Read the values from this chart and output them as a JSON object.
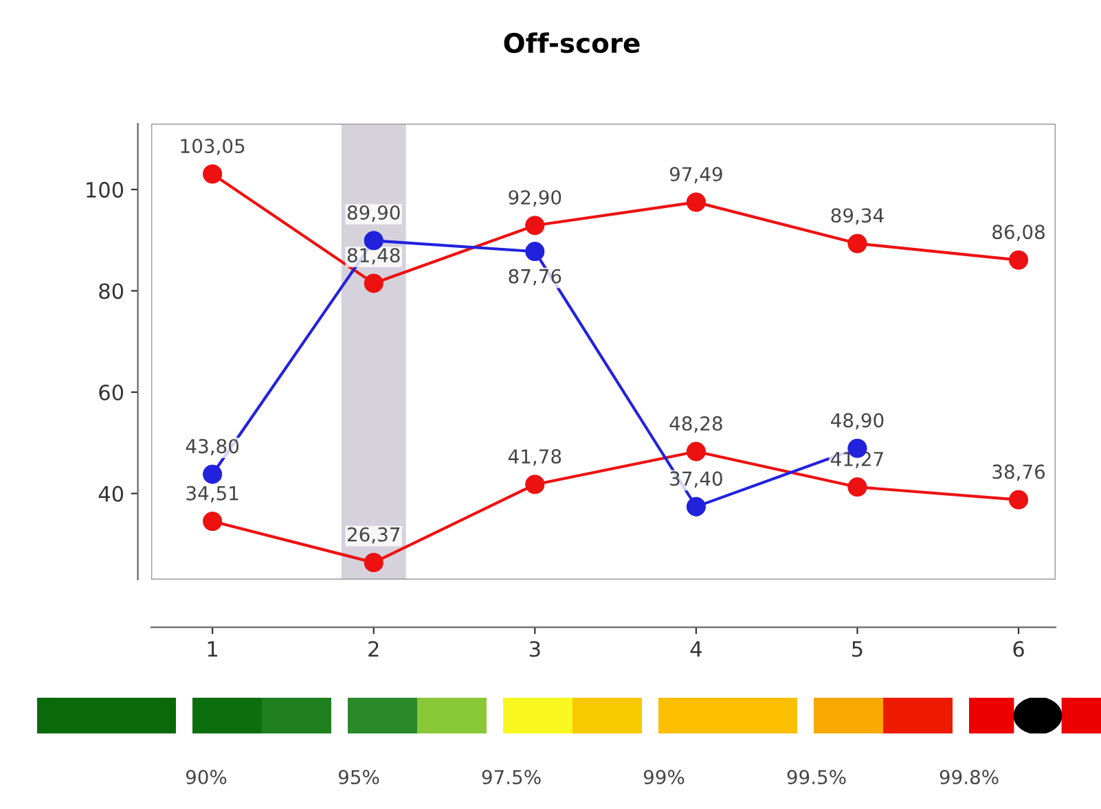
{
  "chart_data": {
    "type": "line",
    "title": "Off-score",
    "x": [
      1,
      2,
      3,
      4,
      5,
      6
    ],
    "series": [
      {
        "color": "#ee1111",
        "values": [
          103.05,
          81.48,
          92.9,
          97.49,
          89.34,
          86.08
        ],
        "value_labels": [
          "103,05",
          "81,48",
          "92,90",
          "97,49",
          "89,34",
          "86,08"
        ]
      },
      {
        "color": "#ee1111",
        "values": [
          34.51,
          26.37,
          41.78,
          48.28,
          41.27,
          38.76
        ],
        "value_labels": [
          "34,51",
          "26,37",
          "41,78",
          "48,28",
          "41,27",
          "38,76"
        ]
      },
      {
        "color": "#2222dd",
        "values": [
          43.8,
          89.9,
          87.76,
          37.4,
          48.9,
          null
        ],
        "value_labels": [
          "43,80",
          "89,90",
          "87,76",
          "37,40",
          "48,90",
          null
        ]
      }
    ],
    "xlim": [
      0.62,
      6.23
    ],
    "xticks": [
      1,
      2,
      3,
      4,
      5,
      6
    ],
    "ylim": [
      23,
      113
    ],
    "yticks": [
      40,
      60,
      80,
      100
    ],
    "bands": [
      {
        "axis": "x",
        "from": 1.8,
        "to": 2.2,
        "color": "#d6d2dc"
      }
    ],
    "marker": "circle",
    "line_style": "solid",
    "grid": false,
    "legend": false,
    "annotations": [
      "90%",
      "95%",
      "97.5%",
      "99%",
      "99.5%",
      "99.8%"
    ]
  }
}
